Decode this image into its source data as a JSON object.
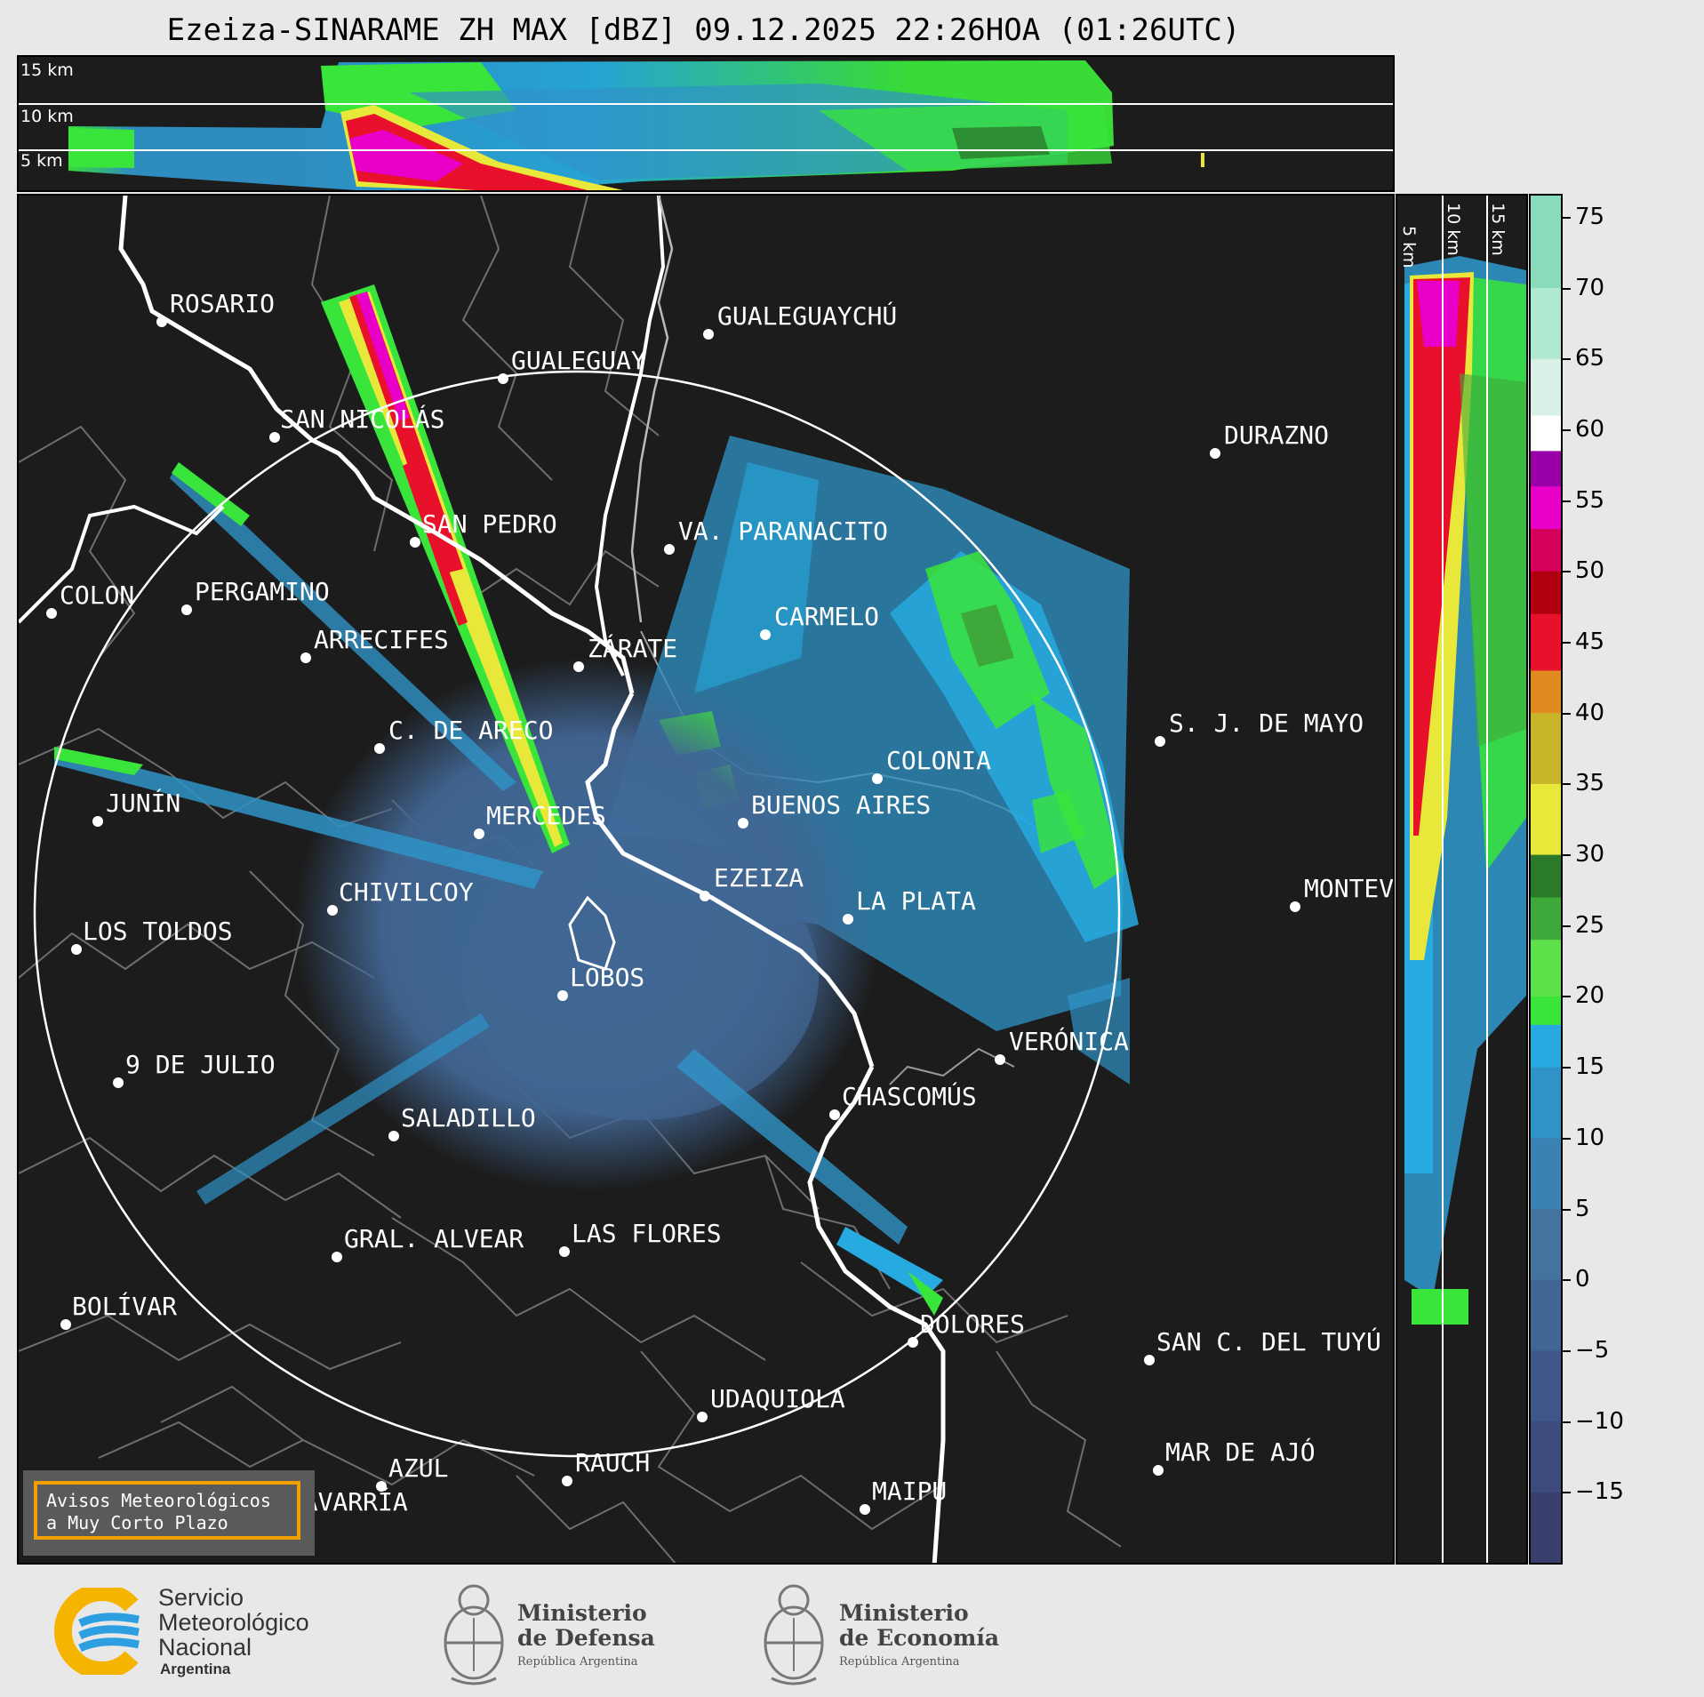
{
  "title": "Ezeiza-SINARAME ZH MAX [dBZ] 09.12.2025 22:26HOA (01:26UTC)",
  "top_panel": {
    "alt_labels": [
      "15 km",
      "10 km",
      "5 km"
    ]
  },
  "side_panel": {
    "alt_labels": [
      "5 km",
      "10 km",
      "15 km"
    ]
  },
  "colorbar": {
    "ticks": [
      "75",
      "70",
      "65",
      "60",
      "55",
      "50",
      "45",
      "40",
      "35",
      "30",
      "25",
      "20",
      "15",
      "10",
      "5",
      "0",
      "−5",
      "−10",
      "−15"
    ],
    "min": -20,
    "max": 76.5,
    "stops": [
      {
        "from": -20,
        "to": -15,
        "color": "#3a3f6e"
      },
      {
        "from": -15,
        "to": -10,
        "color": "#3d4a7c"
      },
      {
        "from": -10,
        "to": -5,
        "color": "#3f5788"
      },
      {
        "from": -5,
        "to": 0,
        "color": "#416693"
      },
      {
        "from": 0,
        "to": 5,
        "color": "#43739e"
      },
      {
        "from": 5,
        "to": 10,
        "color": "#3a82b4"
      },
      {
        "from": 10,
        "to": 15,
        "color": "#2f93c7"
      },
      {
        "from": 15,
        "to": 18,
        "color": "#26aadf"
      },
      {
        "from": 18,
        "to": 20,
        "color": "#39e53a"
      },
      {
        "from": 20,
        "to": 24,
        "color": "#5ee04a"
      },
      {
        "from": 24,
        "to": 27,
        "color": "#3fa83a"
      },
      {
        "from": 27,
        "to": 30,
        "color": "#2b7a2b"
      },
      {
        "from": 30,
        "to": 35,
        "color": "#e8e83a"
      },
      {
        "from": 35,
        "to": 40,
        "color": "#c8b52a"
      },
      {
        "from": 40,
        "to": 43,
        "color": "#e08a20"
      },
      {
        "from": 43,
        "to": 47,
        "color": "#e8102a"
      },
      {
        "from": 47,
        "to": 50,
        "color": "#b00010"
      },
      {
        "from": 50,
        "to": 53,
        "color": "#d4005a"
      },
      {
        "from": 53,
        "to": 56,
        "color": "#e800c8"
      },
      {
        "from": 56,
        "to": 58.5,
        "color": "#9a00a8"
      },
      {
        "from": 58.5,
        "to": 61,
        "color": "#ffffff"
      },
      {
        "from": 61,
        "to": 65,
        "color": "#d8f0e6"
      },
      {
        "from": 65,
        "to": 70,
        "color": "#b0e8d2"
      },
      {
        "from": 70,
        "to": 76.5,
        "color": "#88dcbc"
      }
    ]
  },
  "cities": [
    {
      "name": "ROSARIO"
    },
    {
      "name": "GUALEGUAYCHÚ"
    },
    {
      "name": "GUALEGUAY"
    },
    {
      "name": "SAN NICOLÁS"
    },
    {
      "name": "DURAZNO"
    },
    {
      "name": "SAN PEDRO"
    },
    {
      "name": "VA. PARANACITO"
    },
    {
      "name": "COLON"
    },
    {
      "name": "PERGAMINO"
    },
    {
      "name": "CARMELO"
    },
    {
      "name": "ARRECIFES"
    },
    {
      "name": "ZÁRATE"
    },
    {
      "name": "S. J. DE MAYO"
    },
    {
      "name": "C. DE ARECO"
    },
    {
      "name": "COLONIA"
    },
    {
      "name": "JUNÍN"
    },
    {
      "name": "BUENOS AIRES"
    },
    {
      "name": "MERCEDES"
    },
    {
      "name": "EZEIZA"
    },
    {
      "name": "MONTEVIDEO"
    },
    {
      "name": "CHIVILCOY"
    },
    {
      "name": "LA PLATA"
    },
    {
      "name": "LOS TOLDOS"
    },
    {
      "name": "LOBOS"
    },
    {
      "name": "VERÓNICA"
    },
    {
      "name": "9 DE JULIO"
    },
    {
      "name": "CHASCOMÚS"
    },
    {
      "name": "SALADILLO"
    },
    {
      "name": "GRAL. ALVEAR"
    },
    {
      "name": "LAS FLORES"
    },
    {
      "name": "BOLÍVAR"
    },
    {
      "name": "DOLORES"
    },
    {
      "name": "SAN C. DEL TUYÚ"
    },
    {
      "name": "UDAQUIOLA"
    },
    {
      "name": "MAR DE AJÓ"
    },
    {
      "name": "AZUL"
    },
    {
      "name": "RAUCH"
    },
    {
      "name": "OLAVARRÍA"
    },
    {
      "name": "MAIPÚ"
    }
  ],
  "avisos": {
    "line1": "Avisos Meteorológicos",
    "line2": "a Muy Corto Plazo"
  },
  "footer": {
    "smn": {
      "line1": "Servicio",
      "line2": "Meteorológico",
      "line3": "Nacional",
      "line4": "Argentina"
    },
    "defensa": {
      "line1": "Ministerio",
      "line2": "de Defensa",
      "line3": "República Argentina"
    },
    "economia": {
      "line1": "Ministerio",
      "line2": "de Economía",
      "line3": "República Argentina"
    }
  },
  "colors": {
    "panel_bg": "#1c1c1c",
    "accent_orange": "#f0a000",
    "smn_blue": "#2d9fe0",
    "smn_yellow": "#f5b400"
  }
}
